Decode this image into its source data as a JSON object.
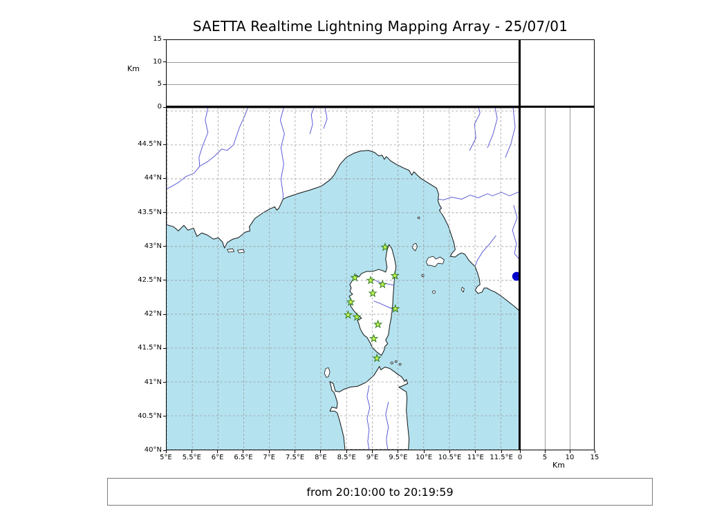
{
  "title": "SAETTA Realtime Lightning Mapping Array - 25/07/01",
  "status_bar": {
    "text": "from 20:10:00 to 20:19:59"
  },
  "colors": {
    "sea": "#b4e2ef",
    "land": "#ffffff",
    "coastline": "#111111",
    "river": "#4a4ad2",
    "grid": "#999999",
    "station_fill": "#c9f454",
    "station_stroke": "#2f7d1e",
    "lake": "#0000cd"
  },
  "altitude_axis": {
    "unit_label": "Km",
    "max": 15,
    "ticks": [
      0,
      5,
      10,
      15
    ]
  },
  "right_axis": {
    "unit_label": "Km",
    "max": 15,
    "ticks": [
      0,
      5,
      10,
      15
    ]
  },
  "map": {
    "lon_min": 5,
    "lon_max": 11.86,
    "lat_min": 40,
    "lat_max": 45.05,
    "grid_step_deg": 0.5,
    "lon_ticks": [
      "5°E",
      "5.5°E",
      "6°E",
      "6.5°E",
      "7°E",
      "7.5°E",
      "8°E",
      "8.5°E",
      "9°E",
      "9.5°E",
      "10°E",
      "10.5°E",
      "11°E",
      "11.5°E"
    ],
    "lon_tick_values": [
      5,
      5.5,
      6,
      6.5,
      7,
      7.5,
      8,
      8.5,
      9,
      9.5,
      10,
      10.5,
      11,
      11.5
    ],
    "lat_ticks": [
      "40°N",
      "40.5°N",
      "41°N",
      "41.5°N",
      "42°N",
      "42.5°N",
      "43°N",
      "43.5°N",
      "44°N",
      "44.5°N"
    ],
    "lat_tick_values": [
      40,
      40.5,
      41,
      41.5,
      42,
      42.5,
      43,
      43.5,
      44,
      44.5
    ],
    "stations": [
      [
        9.25,
        42.99
      ],
      [
        8.66,
        42.54
      ],
      [
        8.97,
        42.5
      ],
      [
        9.2,
        42.44
      ],
      [
        9.44,
        42.57
      ],
      [
        9.01,
        42.31
      ],
      [
        8.58,
        42.18
      ],
      [
        9.45,
        42.08
      ],
      [
        8.53,
        41.99
      ],
      [
        8.7,
        41.96
      ],
      [
        9.11,
        41.85
      ],
      [
        9.03,
        41.64
      ],
      [
        9.09,
        41.35
      ]
    ],
    "lake_point": [
      11.81,
      42.56
    ]
  }
}
